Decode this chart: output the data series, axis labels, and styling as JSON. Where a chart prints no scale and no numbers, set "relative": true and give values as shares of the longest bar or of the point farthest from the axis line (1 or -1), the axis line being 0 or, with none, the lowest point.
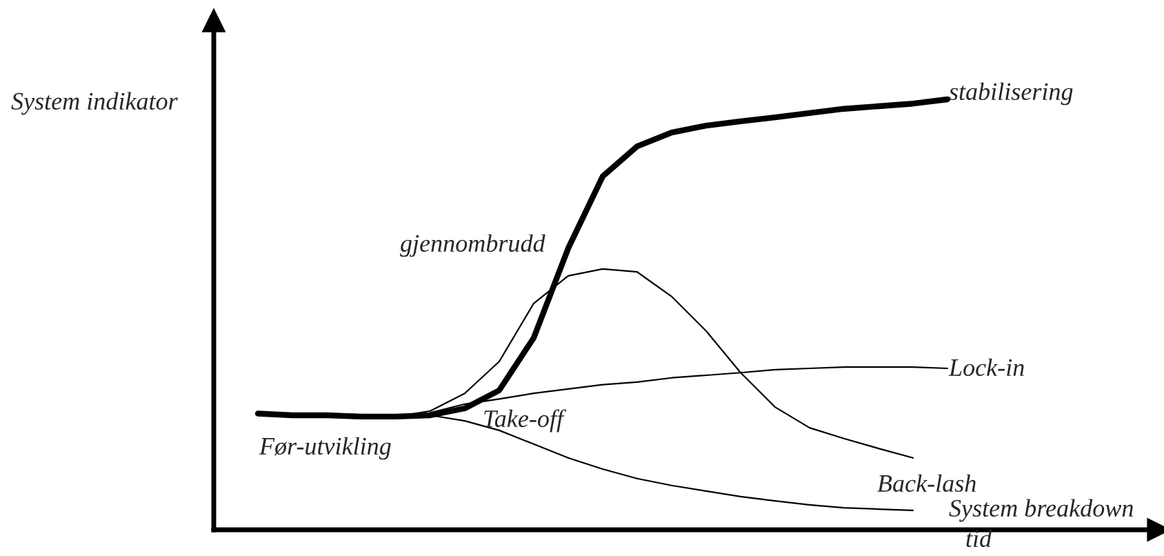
{
  "chart_data": {
    "type": "line",
    "relative": true,
    "ylabel": "System indikator",
    "xlabel": "tid",
    "legend": false,
    "marker": "none",
    "line_style": "solid",
    "categories": [
      null,
      null,
      null,
      null,
      null,
      null,
      null,
      null,
      null,
      null,
      null,
      null,
      null,
      null,
      null,
      null,
      null,
      null,
      null,
      null,
      null
    ],
    "series": [
      {
        "color": "#000000",
        "values": [
          0.27,
          0.266,
          0.266,
          0.263,
          0.263,
          0.266,
          0.282,
          0.324,
          0.446,
          0.654,
          0.821,
          0.891,
          0.923,
          0.939,
          0.949,
          0.958,
          0.968,
          0.978,
          0.984,
          0.99,
          1
        ]
      },
      {
        "color": "#000000",
        "values": [
          null,
          null,
          null,
          null,
          0.263,
          0.276,
          0.317,
          0.391,
          0.526,
          0.59,
          0.606,
          0.599,
          0.542,
          0.462,
          0.365,
          0.285,
          0.237,
          0.212,
          0.189,
          0.167,
          null
        ]
      },
      {
        "color": "#000000",
        "values": [
          null,
          null,
          null,
          null,
          null,
          0.272,
          0.292,
          0.304,
          0.317,
          0.327,
          0.337,
          0.343,
          0.353,
          0.359,
          0.365,
          0.372,
          0.375,
          0.378,
          0.378,
          0.378,
          0.375
        ]
      },
      {
        "color": "#000000",
        "values": [
          null,
          null,
          null,
          null,
          null,
          0.266,
          0.253,
          0.231,
          0.199,
          0.167,
          0.141,
          0.119,
          0.103,
          0.09,
          0.077,
          0.067,
          0.058,
          0.051,
          0.048,
          0.045,
          null
        ]
      }
    ],
    "annotations": [
      "stabilisering",
      "gjennombrudd",
      "Lock-in",
      "Back-lash",
      "System breakdown",
      "Før-utvikling",
      "Take-off"
    ]
  }
}
